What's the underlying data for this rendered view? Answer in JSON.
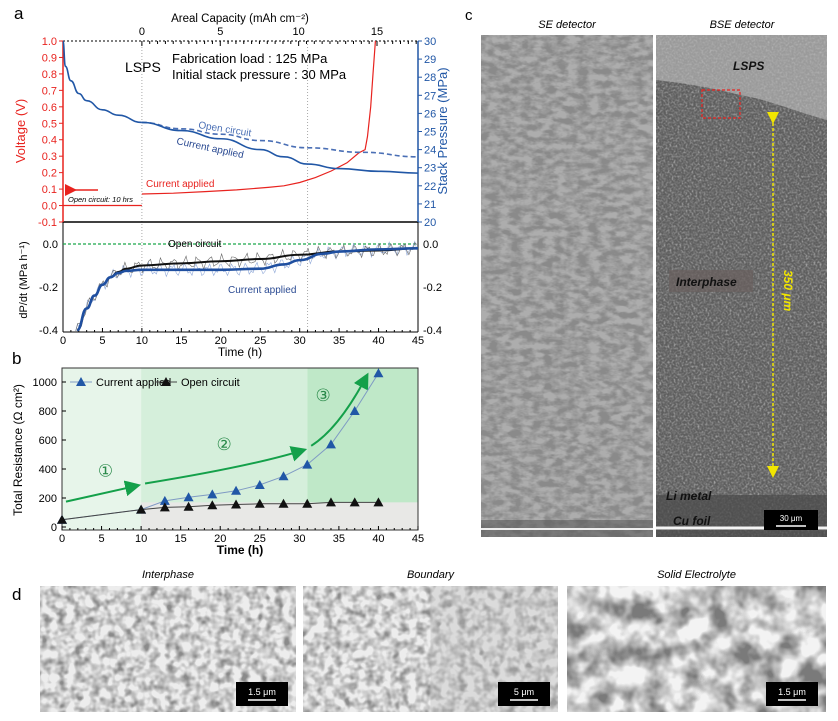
{
  "panel_labels": {
    "a": "a",
    "b": "b",
    "c": "c",
    "d": "d"
  },
  "colors": {
    "voltage": "#e8231f",
    "pressure": "#2157a6",
    "open_circuit_ref": "#1aa64a",
    "arrow": "#14a04a",
    "scale_bar_bg": "#000000",
    "yellow": "#f2e600"
  },
  "chart_data": [
    {
      "id": "a-top",
      "type": "line",
      "title": "",
      "top_xlabel": "Areal Capacity (mAh cm⁻²)",
      "top_xticks": [
        "0",
        "5",
        "10",
        "15"
      ],
      "top_xtick_values": [
        0,
        5,
        10,
        15
      ],
      "xlim_hours": [
        0,
        45
      ],
      "ylabel_left": "Voltage (V)",
      "ylim_left": [
        -0.1,
        1.0
      ],
      "yticks_left": [
        "1.0",
        "0.9",
        "0.8",
        "0.7",
        "0.6",
        "0.5",
        "0.4",
        "0.3",
        "0.2",
        "0.1",
        "0.0",
        "-0.1"
      ],
      "ylabel_right": "Stack Pressure (MPa)",
      "ylim_right": [
        20,
        30
      ],
      "yticks_right": [
        "30",
        "29",
        "28",
        "27",
        "26",
        "25",
        "24",
        "23",
        "22",
        "21",
        "20"
      ],
      "annotations": {
        "material": "LSPS",
        "fabrication": "Fabrication load : 125 MPa",
        "initial_pressure": "Initial stack pressure : 30 MPa",
        "open_circuit": "Open circuit",
        "current_applied_pressure": "Current applied",
        "current_applied_voltage": "Current applied",
        "open_circuit_rest": "Open circuit: 10 hrs"
      },
      "series": [
        {
          "name": "Voltage open circuit",
          "axis": "left",
          "x": [
            0,
            10
          ],
          "y": [
            0.0,
            0.0
          ]
        },
        {
          "name": "Voltage current applied",
          "axis": "left",
          "x": [
            10,
            14,
            18,
            22,
            26,
            28,
            30,
            32,
            34,
            36,
            37.5,
            38.3,
            38.6,
            39,
            39.3,
            39.6
          ],
          "y": [
            0.07,
            0.075,
            0.085,
            0.095,
            0.11,
            0.12,
            0.14,
            0.17,
            0.21,
            0.26,
            0.32,
            0.34,
            0.42,
            0.6,
            0.8,
            1.0
          ]
        },
        {
          "name": "Stack pressure (all)",
          "axis": "right",
          "x": [
            0,
            0.3,
            1,
            2,
            3,
            5,
            7,
            10
          ],
          "y": [
            30,
            28.6,
            27.8,
            27.1,
            26.7,
            26.2,
            25.9,
            25.5
          ]
        },
        {
          "name": "Stack pressure open circuit",
          "axis": "right",
          "dashed": true,
          "x": [
            10,
            15,
            20,
            25,
            31,
            38,
            45
          ],
          "y": [
            25.5,
            25.15,
            24.85,
            24.5,
            24.1,
            23.85,
            23.6
          ]
        },
        {
          "name": "Stack pressure current applied",
          "axis": "right",
          "x": [
            10,
            15,
            20,
            25,
            28,
            31,
            35,
            40,
            45
          ],
          "y": [
            25.5,
            25.05,
            24.6,
            24.0,
            23.6,
            23.2,
            22.95,
            22.8,
            22.7
          ]
        }
      ],
      "guides_hours": [
        10,
        31
      ]
    },
    {
      "id": "a-bottom",
      "type": "line",
      "xlabel": "Time (h)",
      "xlim": [
        0,
        45
      ],
      "xticks": [
        "0",
        "5",
        "10",
        "15",
        "20",
        "25",
        "30",
        "35",
        "40",
        "45"
      ],
      "ylabel": "dP/dt (MPa h⁻¹)",
      "ylim": [
        -0.4,
        0.0
      ],
      "yticks": [
        "0.0",
        "-0.2",
        "-0.4"
      ],
      "annotations": {
        "open_circuit": "Open circuit",
        "current_applied": "Current applied"
      },
      "series": [
        {
          "name": "Open circuit (smoothed)",
          "x": [
            1.8,
            3,
            4,
            5,
            6,
            7,
            8,
            10,
            15,
            20,
            25,
            30,
            35,
            40,
            45
          ],
          "y": [
            -0.4,
            -0.3,
            -0.24,
            -0.19,
            -0.155,
            -0.13,
            -0.115,
            -0.1,
            -0.09,
            -0.08,
            -0.07,
            -0.05,
            -0.035,
            -0.03,
            -0.02
          ]
        },
        {
          "name": "Current applied (smoothed)",
          "x": [
            1.8,
            3,
            4,
            5,
            6,
            7,
            8,
            10,
            15,
            20,
            25,
            28,
            30,
            33,
            35,
            40,
            45
          ],
          "y": [
            -0.4,
            -0.3,
            -0.24,
            -0.19,
            -0.155,
            -0.135,
            -0.125,
            -0.12,
            -0.12,
            -0.12,
            -0.115,
            -0.095,
            -0.075,
            -0.045,
            -0.035,
            -0.025,
            -0.02
          ]
        },
        {
          "name": "Open circuit reference",
          "dashed": true,
          "x": [
            0,
            45
          ],
          "y": [
            0,
            0
          ]
        }
      ]
    },
    {
      "id": "b",
      "type": "line",
      "xlabel": "Time (h)",
      "xlim": [
        0,
        45
      ],
      "xticks": [
        "0",
        "5",
        "10",
        "15",
        "20",
        "25",
        "30",
        "35",
        "40",
        "45"
      ],
      "ylabel": "Total Resistance (Ω cm²)",
      "ylim": [
        0,
        1100
      ],
      "yticks": [
        "0",
        "200",
        "400",
        "600",
        "800",
        "1000"
      ],
      "legend": "top-left",
      "stage_labels": [
        "①",
        "②",
        "③"
      ],
      "stage_bounds_hours": [
        0,
        10,
        31,
        45
      ],
      "series": [
        {
          "name": "Current applied",
          "marker": "triangle",
          "x": [
            0,
            10,
            13,
            16,
            19,
            22,
            25,
            28,
            31,
            34,
            37,
            40
          ],
          "y": [
            50,
            120,
            180,
            205,
            225,
            250,
            290,
            350,
            430,
            570,
            800,
            1060
          ]
        },
        {
          "name": "Open circuit",
          "marker": "triangle",
          "x": [
            0,
            10,
            13,
            16,
            19,
            22,
            25,
            28,
            31,
            34,
            37,
            40
          ],
          "y": [
            50,
            120,
            135,
            140,
            150,
            155,
            160,
            160,
            160,
            170,
            170,
            170
          ]
        }
      ]
    }
  ],
  "panel_c": {
    "se_title": "SE detector",
    "bse_title": "BSE detector",
    "label_lsps": "LSPS",
    "label_interphase": "Interphase",
    "label_li_metal": "Li metal",
    "label_cu_foil": "Cu foil",
    "thickness": "350 μm",
    "scale_bar": "30 μm"
  },
  "panel_d": {
    "images": [
      {
        "title": "Interphase",
        "scale_bar": "1.5 μm"
      },
      {
        "title": "Boundary",
        "scale_bar": "5 μm"
      },
      {
        "title": "Solid Electrolyte",
        "scale_bar": "1.5 μm"
      }
    ]
  }
}
